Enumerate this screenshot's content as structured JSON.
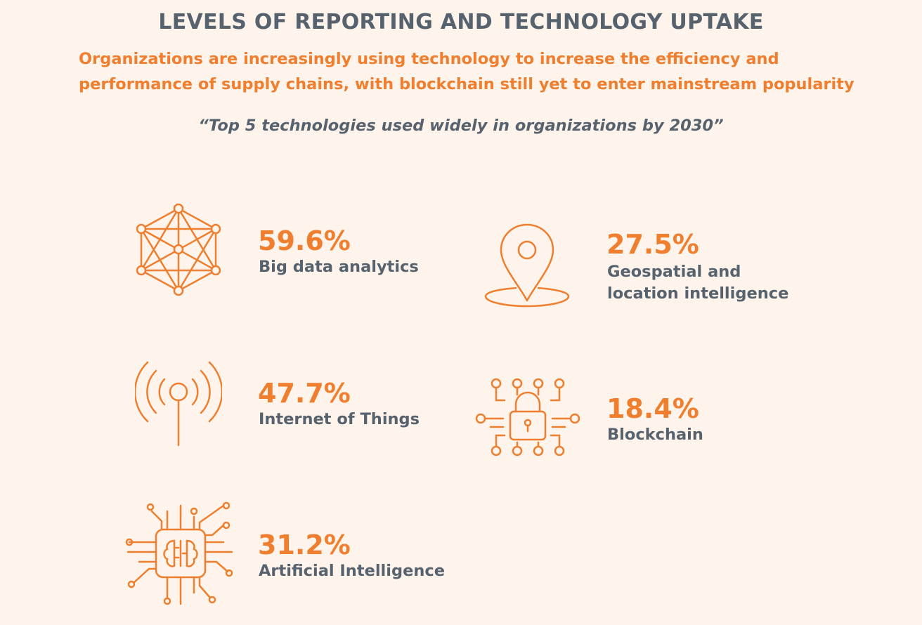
{
  "header": {
    "title": "LEVELS OF REPORTING AND TECHNOLOGY UPTAKE",
    "subtitle_line1": "Organizations are increasingly using  technology to increase the efficiency and",
    "subtitle_line2": "performance of supply chains, with blockchain  still yet to enter mainstream popularity",
    "quote": "“Top 5 technologies used widely  in organizations by 2030”"
  },
  "colors": {
    "accent": "#ef7e2e",
    "text": "#56626d",
    "background": "#fef4ec"
  },
  "stats": [
    {
      "percent": "59.6%",
      "label": "Big data analytics",
      "icon": "network-icon"
    },
    {
      "percent": "47.7%",
      "label": "Internet of Things",
      "icon": "antenna-icon"
    },
    {
      "percent": "31.2%",
      "label": "Artificial Intelligence",
      "icon": "ai-chip-icon"
    },
    {
      "percent": "27.5%",
      "label_line1": "Geospatial and",
      "label_line2": "location intelligence",
      "icon": "location-pin-icon"
    },
    {
      "percent": "18.4%",
      "label": "Blockchain",
      "icon": "blockchain-lock-icon"
    }
  ]
}
